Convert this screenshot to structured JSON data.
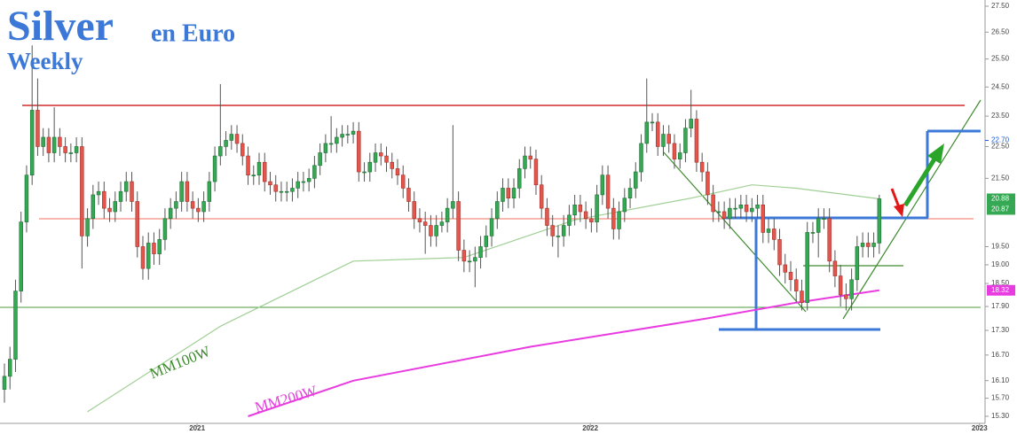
{
  "chart_data": {
    "type": "candlestick",
    "title": "Silver",
    "subtitle": "en Euro",
    "period": "Weekly",
    "xlim": [
      -0.8,
      176.3
    ],
    "xticks": [
      {
        "value": 34.8,
        "label": "2021"
      },
      {
        "value": 105.8,
        "label": "2022"
      },
      {
        "value": 176.1,
        "label": "2023"
      }
    ],
    "ylim": [
      15.3,
      27.5
    ],
    "log_scale": true,
    "yticks": [
      {
        "value": 15.3,
        "label": "15.30"
      },
      {
        "value": 15.7,
        "label": "15.70"
      },
      {
        "value": 16.1,
        "label": "16.10"
      },
      {
        "value": 16.7,
        "label": "16.70"
      },
      {
        "value": 17.3,
        "label": "17.30"
      },
      {
        "value": 17.9,
        "label": "17.90"
      },
      {
        "value": 18.5,
        "label": "18.50"
      },
      {
        "value": 19,
        "label": "19.00"
      },
      {
        "value": 19.5,
        "label": "19.50"
      },
      {
        "value": 21.5,
        "label": "21.50"
      },
      {
        "value": 22.5,
        "label": "22.50"
      },
      {
        "value": 23.5,
        "label": "23.50"
      },
      {
        "value": 24.5,
        "label": "24.50"
      },
      {
        "value": 25.5,
        "label": "25.50"
      },
      {
        "value": 26.5,
        "label": "26.50"
      },
      {
        "value": 27.5,
        "label": "27.50"
      }
    ],
    "up_color": "#35a853",
    "down_color": "#e4564c",
    "open": [
      15.9,
      16.2,
      16.6,
      18.3,
      20.2,
      21.6,
      23.7,
      22.5,
      22.8,
      22.3,
      22.8,
      22.5,
      22.3,
      22.3,
      22.5,
      19.8,
      20.3,
      21.0,
      21.1,
      20.6,
      20.5,
      20.8,
      21.1,
      21.4,
      20.8,
      19.5,
      18.9,
      19.6,
      19.3,
      19.7,
      20.3,
      20.6,
      20.8,
      21.4,
      20.8,
      20.6,
      20.5,
      20.8,
      21.4,
      22.2,
      22.5,
      22.7,
      22.9,
      22.6,
      22.2,
      21.6,
      21.6,
      22.0,
      21.4,
      21.3,
      21.1,
      21.1,
      21.1,
      21.2,
      21.4,
      21.4,
      21.5,
      21.9,
      22.3,
      22.6,
      22.6,
      22.8,
      22.9,
      22.9,
      23.0,
      21.7,
      21.7,
      22.0,
      22.3,
      22.2,
      22.0,
      21.8,
      21.6,
      21.2,
      20.8,
      20.3,
      20.2,
      20.1,
      19.8,
      20.1,
      20.2,
      20.6,
      20.8,
      19.4,
      19.1,
      19.1,
      19.2,
      19.5,
      19.8,
      20.3,
      20.8,
      21.2,
      20.9,
      21.2,
      21.8,
      22.2,
      22.1,
      21.3,
      20.6,
      20.1,
      19.8,
      19.8,
      20.1,
      20.4,
      20.7,
      20.5,
      20.3,
      20.2,
      21.0,
      21.6,
      20.6,
      20.0,
      20.5,
      20.9,
      21.2,
      21.7,
      22.6,
      23.3,
      23.3,
      22.5,
      22.9,
      22.6,
      22.1,
      22.3,
      23.1,
      23.4,
      22.0,
      21.7,
      21.0,
      20.5,
      20.5,
      20.3,
      20.6,
      20.6,
      20.7,
      20.5,
      20.6,
      20.7,
      19.9,
      20.0,
      19.7,
      19.0,
      18.8,
      18.6,
      18.3,
      18.0,
      19.9,
      19.9,
      20.3,
      20.3,
      19.1,
      18.7,
      18.2,
      18.1,
      18.6,
      19.5,
      19.6,
      19.5,
      19.6
    ],
    "high": [
      16.5,
      16.9,
      18.6,
      20.5,
      21.9,
      26.0,
      24.8,
      23.1,
      23.1,
      23.8,
      23.1,
      22.8,
      22.6,
      22.8,
      22.8,
      20.6,
      21.3,
      21.4,
      21.4,
      20.9,
      21.1,
      21.4,
      21.7,
      21.7,
      21.1,
      19.8,
      19.9,
      19.9,
      20.0,
      20.6,
      20.9,
      21.1,
      21.7,
      21.7,
      21.1,
      20.9,
      21.1,
      21.7,
      22.5,
      24.6,
      23.0,
      23.2,
      23.2,
      22.9,
      22.5,
      21.9,
      22.3,
      22.3,
      21.7,
      21.6,
      21.4,
      21.4,
      21.5,
      21.7,
      21.7,
      21.8,
      22.2,
      22.6,
      22.9,
      23.5,
      23.1,
      23.2,
      23.2,
      23.3,
      23.3,
      22.0,
      22.3,
      22.6,
      22.6,
      22.5,
      22.3,
      22.1,
      21.9,
      21.5,
      21.1,
      20.6,
      20.5,
      20.4,
      20.4,
      20.5,
      20.9,
      23.2,
      21.1,
      19.7,
      19.4,
      19.5,
      19.8,
      20.1,
      20.6,
      21.1,
      21.5,
      21.5,
      21.5,
      22.1,
      22.5,
      22.5,
      22.4,
      21.6,
      20.9,
      20.4,
      20.1,
      20.4,
      20.7,
      21.0,
      21.0,
      20.8,
      20.6,
      21.3,
      21.9,
      21.9,
      20.9,
      20.8,
      21.2,
      21.5,
      22.0,
      22.9,
      24.8,
      23.6,
      23.6,
      23.2,
      23.2,
      22.9,
      22.6,
      23.4,
      24.4,
      23.7,
      22.3,
      22.0,
      21.3,
      20.8,
      20.8,
      20.9,
      20.9,
      21.0,
      21.0,
      20.9,
      21.0,
      21.0,
      20.3,
      20.3,
      20.0,
      19.3,
      19.1,
      18.9,
      18.6,
      20.2,
      20.2,
      20.6,
      20.6,
      20.6,
      19.4,
      19.0,
      18.5,
      18.9,
      19.8,
      19.9,
      19.9,
      19.9,
      21.0
    ],
    "low": [
      15.6,
      15.9,
      16.3,
      18.0,
      19.9,
      21.3,
      22.2,
      22.2,
      22.0,
      22.0,
      22.2,
      22.0,
      22.0,
      22.0,
      18.9,
      19.5,
      20.0,
      20.7,
      20.3,
      20.2,
      20.2,
      20.5,
      20.8,
      20.5,
      19.2,
      18.6,
      18.6,
      19.0,
      19.0,
      19.4,
      20.0,
      20.3,
      20.5,
      20.5,
      20.3,
      20.2,
      20.2,
      20.5,
      21.1,
      21.9,
      22.2,
      22.4,
      22.3,
      21.9,
      21.3,
      21.3,
      21.3,
      21.1,
      21.0,
      20.8,
      20.8,
      20.8,
      20.8,
      20.9,
      21.1,
      21.1,
      21.2,
      21.6,
      22.0,
      22.3,
      22.3,
      22.5,
      22.6,
      22.6,
      21.4,
      21.4,
      21.4,
      21.7,
      21.9,
      21.7,
      21.5,
      21.3,
      20.9,
      20.5,
      20.0,
      19.9,
      19.3,
      19.5,
      19.5,
      19.9,
      19.9,
      20.3,
      19.1,
      18.8,
      18.8,
      18.4,
      18.9,
      19.2,
      19.5,
      20.0,
      20.5,
      20.6,
      20.6,
      20.9,
      21.5,
      21.8,
      21.0,
      20.3,
      19.8,
      19.5,
      19.2,
      19.5,
      19.8,
      20.1,
      20.2,
      20.0,
      19.9,
      19.9,
      20.7,
      20.3,
      19.7,
      19.7,
      20.2,
      20.6,
      20.9,
      21.4,
      22.3,
      23.0,
      22.2,
      22.2,
      22.3,
      21.8,
      21.8,
      22.0,
      22.8,
      21.7,
      21.4,
      20.7,
      20.2,
      20.2,
      20.0,
      20.0,
      20.3,
      20.3,
      20.2,
      20.2,
      20.3,
      19.6,
      19.6,
      19.4,
      18.7,
      18.5,
      18.3,
      18.0,
      17.8,
      17.8,
      19.6,
      19.2,
      20.0,
      18.8,
      18.4,
      17.9,
      17.8,
      17.8,
      18.3,
      19.2,
      19.2,
      19.2,
      19.3
    ],
    "close": [
      16.2,
      16.6,
      18.3,
      20.2,
      21.6,
      23.7,
      22.5,
      22.8,
      22.3,
      22.8,
      22.5,
      22.3,
      22.3,
      22.5,
      19.8,
      20.3,
      21.0,
      21.1,
      20.6,
      20.5,
      20.8,
      21.1,
      21.4,
      20.8,
      19.5,
      18.9,
      19.6,
      19.3,
      19.7,
      20.3,
      20.6,
      20.8,
      21.4,
      20.8,
      20.6,
      20.5,
      20.8,
      21.4,
      22.2,
      22.5,
      22.7,
      22.9,
      22.6,
      22.2,
      21.6,
      21.6,
      22.0,
      21.4,
      21.3,
      21.1,
      21.1,
      21.1,
      21.2,
      21.4,
      21.4,
      21.5,
      21.9,
      22.3,
      22.6,
      22.6,
      22.8,
      22.9,
      22.9,
      23.0,
      21.7,
      21.7,
      22.0,
      22.3,
      22.2,
      22.0,
      21.8,
      21.6,
      21.2,
      20.8,
      20.3,
      20.2,
      20.1,
      19.8,
      20.1,
      20.2,
      20.6,
      20.8,
      19.4,
      19.1,
      19.1,
      19.2,
      19.5,
      19.8,
      20.3,
      20.8,
      21.2,
      20.9,
      21.2,
      21.8,
      22.2,
      22.1,
      21.3,
      20.6,
      20.1,
      19.8,
      19.8,
      20.1,
      20.4,
      20.7,
      20.5,
      20.3,
      20.2,
      21.0,
      21.6,
      20.6,
      20.0,
      20.5,
      20.9,
      21.2,
      21.7,
      22.6,
      23.3,
      23.3,
      22.5,
      22.9,
      22.6,
      22.1,
      22.3,
      23.1,
      23.4,
      22.0,
      21.7,
      21.0,
      20.5,
      20.5,
      20.3,
      20.6,
      20.6,
      20.7,
      20.5,
      20.6,
      20.7,
      19.9,
      20.0,
      19.7,
      19.0,
      18.8,
      18.6,
      18.3,
      18.0,
      19.9,
      19.9,
      20.3,
      20.3,
      19.1,
      18.7,
      18.2,
      18.1,
      18.6,
      19.5,
      19.6,
      19.5,
      19.6,
      20.88
    ],
    "lines": [
      {
        "name": "MM100W",
        "color": "#9fcf94",
        "x": [
          15,
          39,
          63,
          83,
          103,
          124,
          135,
          143,
          158
        ],
        "values": [
          15.4,
          17.4,
          19.1,
          19.2,
          20.26,
          20.9,
          21.3,
          21.2,
          20.88
        ]
      },
      {
        "name": "MM200W",
        "color": "#e83ce0",
        "x": [
          44,
          63,
          95,
          127,
          143,
          158
        ],
        "values": [
          15.3,
          16.1,
          16.9,
          17.6,
          18.0,
          18.32
        ]
      }
    ],
    "price_labels": [
      {
        "value": 22.7,
        "label": "22.70",
        "color": "#1e5bd6",
        "boxed": false
      },
      {
        "value": 20.88,
        "label": "20.88",
        "color": "#35a853",
        "boxed": true
      },
      {
        "value": 20.87,
        "label": "20.87",
        "color": "#35a853",
        "boxed": true
      },
      {
        "value": 18.32,
        "label": "18.32",
        "color": "#e83ce0",
        "boxed": true
      }
    ]
  }
}
